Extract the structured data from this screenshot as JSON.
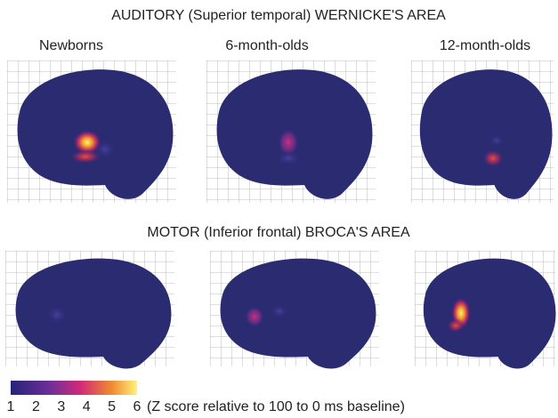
{
  "titles": [
    "AUDITORY (Superior temporal) WERNICKE'S AREA",
    "MOTOR (Inferior frontal) BROCA'S AREA"
  ],
  "columns": [
    "Newborns",
    "6-month-olds",
    "12-month-olds"
  ],
  "colorbar": {
    "ticks": [
      "1",
      "2",
      "3",
      "4",
      "5",
      "6"
    ],
    "caption": "(Z score relative to 100 to 0 ms baseline)"
  }
}
